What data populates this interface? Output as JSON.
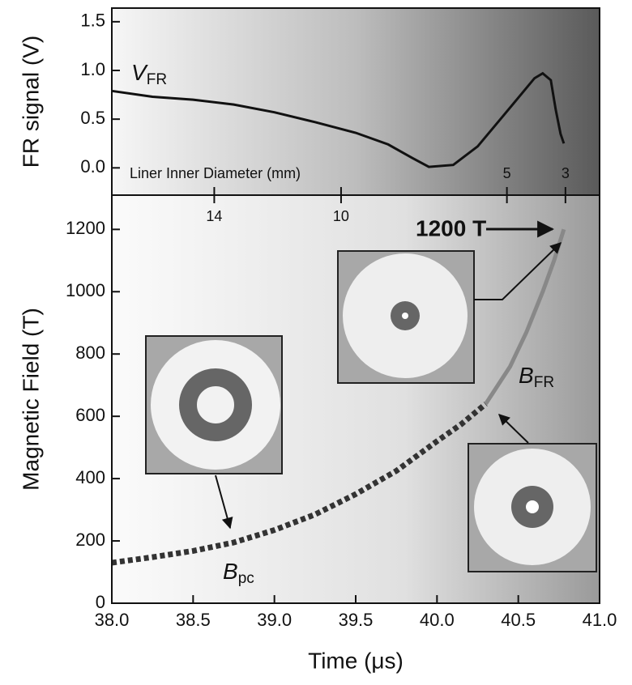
{
  "chart_data": [
    {
      "type": "line",
      "ylabel": "FR signal (V)",
      "xlim": [
        38.0,
        41.0
      ],
      "ylim": [
        -0.28,
        1.64
      ],
      "yticks": [
        1.5,
        {
          "value": 1,
          "label": "1.0"
        },
        0.5,
        {
          "value": 0,
          "label": "0.0"
        }
      ],
      "x2label": "Liner Inner Diameter (mm)",
      "x2ticks": [
        {
          "value": 38.63,
          "label": "14"
        },
        {
          "value": 39.41,
          "label": "10"
        },
        {
          "value": 40.43,
          "label": "5"
        },
        {
          "value": 40.79,
          "label": "3"
        }
      ],
      "series": [
        {
          "color": "#111111",
          "x": [
            38.0,
            38.25,
            38.5,
            38.75,
            39.0,
            39.25,
            39.5,
            39.7,
            39.85,
            39.95,
            40.1,
            40.25,
            40.4,
            40.5,
            40.6,
            40.65,
            40.7,
            40.73,
            40.76,
            40.78
          ],
          "values": [
            0.79,
            0.73,
            0.7,
            0.65,
            0.57,
            0.47,
            0.36,
            0.24,
            0.1,
            0.01,
            0.03,
            0.22,
            0.52,
            0.72,
            0.92,
            0.97,
            0.9,
            0.6,
            0.35,
            0.25
          ]
        }
      ],
      "annotations": [
        {
          "main": "V",
          "sub": "FR"
        }
      ]
    },
    {
      "type": "line",
      "xlabel": "Time (μs)",
      "ylabel": "Magnetic Field (T)",
      "xlim": [
        38.0,
        41.0
      ],
      "ylim": [
        0,
        1310
      ],
      "xticks": [
        {
          "value": 38,
          "label": "38.0"
        },
        38.5,
        {
          "value": 39,
          "label": "39.0"
        },
        39.5,
        {
          "value": 40,
          "label": "40.0"
        },
        40.5,
        {
          "value": 41,
          "label": "41.0"
        }
      ],
      "yticks": [
        0,
        200,
        400,
        600,
        800,
        1000,
        1200
      ],
      "series": [
        {
          "color": "#333333",
          "dashed": true,
          "x": [
            38.0,
            38.25,
            38.5,
            38.75,
            39.0,
            39.25,
            39.5,
            39.75,
            40.0,
            40.15,
            40.3
          ],
          "values": [
            130,
            148,
            168,
            195,
            235,
            285,
            350,
            425,
            520,
            575,
            640
          ]
        },
        {
          "color": "#888888",
          "dashed": false,
          "x": [
            40.3,
            40.45,
            40.55,
            40.65,
            40.72,
            40.78
          ],
          "values": [
            640,
            760,
            870,
            1000,
            1100,
            1200
          ]
        }
      ],
      "annotations": [
        {
          "text": "1200 T"
        },
        {
          "main": "B",
          "sub": "FR"
        },
        {
          "main": "B",
          "sub": "pc"
        }
      ]
    }
  ]
}
